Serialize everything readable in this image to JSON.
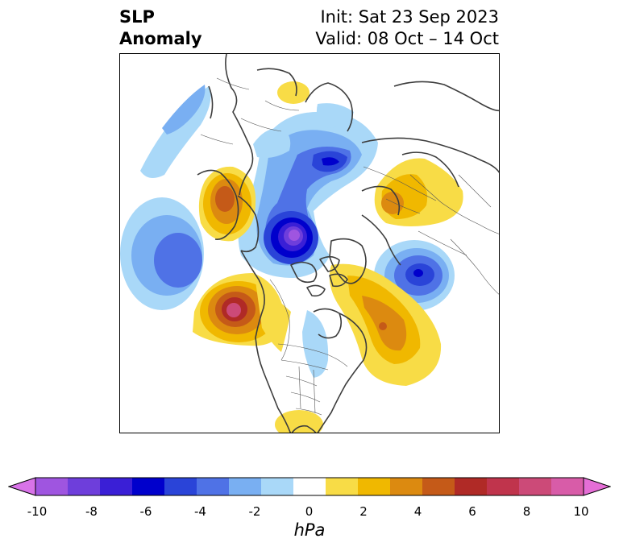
{
  "header": {
    "title_line1": "SLP",
    "title_line2": "Anomaly",
    "init_label": "Init: Sat 23 Sep 2023",
    "valid_label": "Valid: 08 Oct – 14 Oct"
  },
  "colorbar": {
    "unit": "hPa",
    "tick_labels": [
      "-10",
      "-8",
      "-6",
      "-4",
      "-2",
      "0",
      "2",
      "4",
      "6",
      "8",
      "10"
    ],
    "colors": [
      "#d873e8",
      "#9f55e0",
      "#6e3edb",
      "#3a1fd6",
      "#0000cc",
      "#2a44d8",
      "#4f72e6",
      "#79aff2",
      "#a9d8f8",
      "#ffffff",
      "#f8dc46",
      "#f0b800",
      "#dc8a10",
      "#c55a18",
      "#b02a26",
      "#c0344c",
      "#cc4a78",
      "#d85ca8",
      "#e56ed6"
    ]
  },
  "map": {
    "projection": "north polar stereographic",
    "anomalies": [
      {
        "name": "negative-center-arctic-siberia",
        "value": -7
      },
      {
        "name": "negative-center-north-pacific",
        "value": -4
      },
      {
        "name": "negative-center-norway-sea",
        "value": -6
      },
      {
        "name": "negative-center-kara-sea",
        "value": -4
      },
      {
        "name": "positive-center-greenland-atlantic",
        "value": 5
      },
      {
        "name": "positive-center-eurasia",
        "value": 4
      },
      {
        "name": "positive-center-alaska-bering",
        "value": 5
      },
      {
        "name": "positive-center-canada",
        "value": 4
      }
    ]
  }
}
